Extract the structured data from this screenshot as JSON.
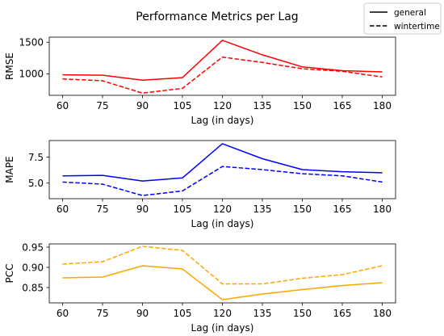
{
  "chart_data": {
    "title": "Performance Metrics per Lag",
    "legend": {
      "position": "top-right",
      "entries": [
        {
          "label": "general",
          "style": "solid"
        },
        {
          "label": "wintertime",
          "style": "dashed"
        }
      ]
    },
    "subplots": [
      {
        "type": "line",
        "ylabel": "RMSE",
        "xlabel": "Lag (in days)",
        "color": "#ff0000",
        "x": [
          60,
          75,
          90,
          105,
          120,
          135,
          150,
          165,
          180
        ],
        "xticks": [
          "60",
          "75",
          "90",
          "105",
          "120",
          "135",
          "150",
          "165",
          "180"
        ],
        "xlim": [
          55,
          185
        ],
        "ylim": [
          660,
          1580
        ],
        "yticks": [
          {
            "value": 1000,
            "label": "1000"
          },
          {
            "value": 1500,
            "label": "1500"
          }
        ],
        "series": [
          {
            "name": "general",
            "style": "solid",
            "values": [
              985,
              978,
              900,
              940,
              1530,
              1300,
              1110,
              1050,
              1030
            ]
          },
          {
            "name": "wintertime",
            "style": "dashed",
            "values": [
              920,
              890,
              695,
              770,
              1265,
              1180,
              1080,
              1040,
              950
            ]
          }
        ]
      },
      {
        "type": "line",
        "ylabel": "MAPE",
        "xlabel": "Lag (in days)",
        "color": "#0000ff",
        "x": [
          60,
          75,
          90,
          105,
          120,
          135,
          150,
          165,
          180
        ],
        "xticks": [
          "60",
          "75",
          "90",
          "105",
          "120",
          "135",
          "150",
          "165",
          "180"
        ],
        "xlim": [
          55,
          185
        ],
        "ylim": [
          3.5,
          9.1
        ],
        "yticks": [
          {
            "value": 5.0,
            "label": "5.0"
          },
          {
            "value": 7.5,
            "label": "7.5"
          }
        ],
        "series": [
          {
            "name": "general",
            "style": "solid",
            "values": [
              5.7,
              5.75,
              5.2,
              5.5,
              8.8,
              7.35,
              6.3,
              6.1,
              6.0
            ]
          },
          {
            "name": "wintertime",
            "style": "dashed",
            "values": [
              5.1,
              4.9,
              3.8,
              4.25,
              6.6,
              6.3,
              5.9,
              5.7,
              5.1
            ]
          }
        ]
      },
      {
        "type": "line",
        "ylabel": "PCC",
        "xlabel": "Lag (in days)",
        "color": "#ffa500",
        "x": [
          60,
          75,
          90,
          105,
          120,
          135,
          150,
          165,
          180
        ],
        "xticks": [
          "60",
          "75",
          "90",
          "105",
          "120",
          "135",
          "150",
          "165",
          "180"
        ],
        "xlim": [
          55,
          185
        ],
        "ylim": [
          0.812,
          0.958
        ],
        "yticks": [
          {
            "value": 0.85,
            "label": "0.85"
          },
          {
            "value": 0.9,
            "label": "0.90"
          },
          {
            "value": 0.95,
            "label": "0.95"
          }
        ],
        "series": [
          {
            "name": "general",
            "style": "solid",
            "values": [
              0.874,
              0.876,
              0.904,
              0.896,
              0.82,
              0.834,
              0.845,
              0.855,
              0.862
            ]
          },
          {
            "name": "wintertime",
            "style": "dashed",
            "values": [
              0.908,
              0.914,
              0.952,
              0.942,
              0.859,
              0.859,
              0.873,
              0.882,
              0.904
            ]
          }
        ]
      }
    ]
  }
}
